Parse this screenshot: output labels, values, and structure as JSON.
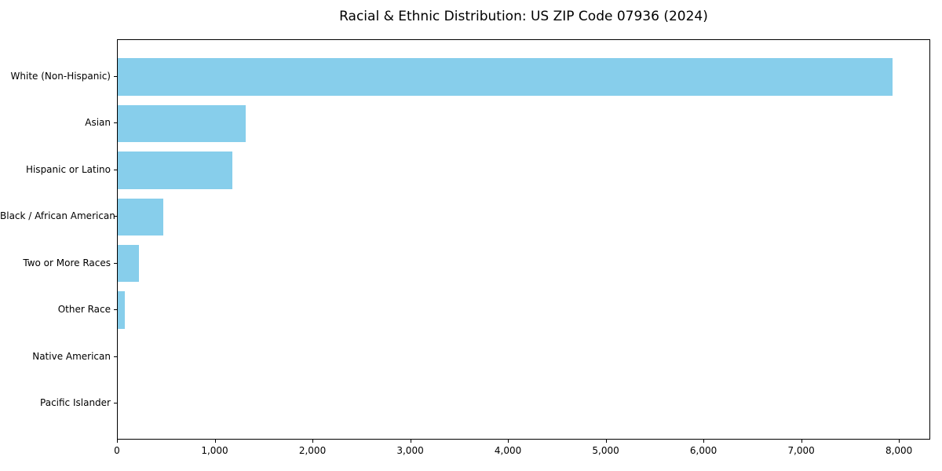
{
  "title": "Racial & Ethnic Distribution: US ZIP Code 07936 (2024)",
  "chart_data": {
    "type": "bar",
    "orientation": "horizontal",
    "title": "Racial & Ethnic Distribution: US ZIP Code 07936 (2024)",
    "xlabel": "",
    "ylabel": "",
    "categories": [
      "White (Non-Hispanic)",
      "Asian",
      "Hispanic or Latino",
      "Black / African American",
      "Two or More Races",
      "Other Race",
      "Native American",
      "Pacific Islander"
    ],
    "values": [
      7930,
      1310,
      1170,
      465,
      215,
      75,
      0,
      0
    ],
    "xlim": [
      0,
      8320
    ],
    "xticks": [
      0,
      1000,
      2000,
      3000,
      4000,
      5000,
      6000,
      7000,
      8000
    ],
    "xtick_labels": [
      "0",
      "1,000",
      "2,000",
      "3,000",
      "4,000",
      "5,000",
      "6,000",
      "7,000",
      "8,000"
    ],
    "bar_color": "#87CEEB",
    "axis_color": "#000000",
    "background_color": "#ffffff",
    "grid": false,
    "legend": null
  }
}
